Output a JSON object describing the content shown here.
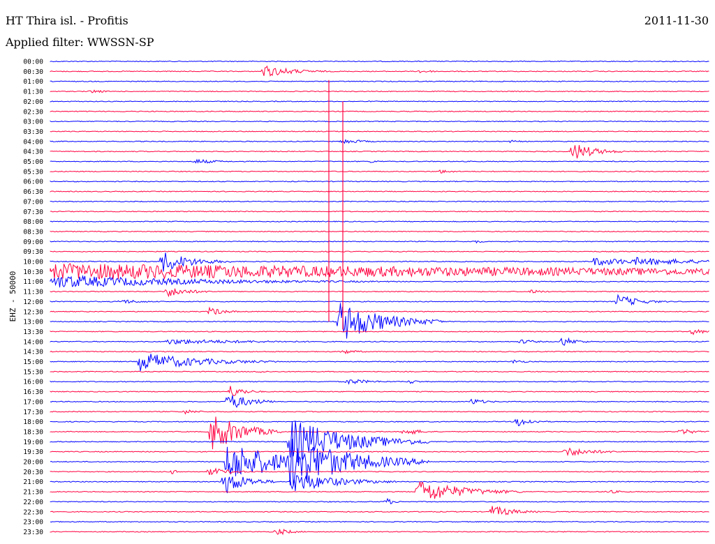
{
  "header": {
    "station": "HT Thira isl. - Profitis",
    "date": "2011-11-30",
    "filter": "Applied filter: WWSSN-SP"
  },
  "channel_label": "EHZ - 50000",
  "colors": {
    "even": "#0000ff",
    "odd": "#ff0040"
  },
  "time_labels": [
    "00:00",
    "00:30",
    "01:00",
    "01:30",
    "02:00",
    "02:30",
    "03:00",
    "03:30",
    "04:00",
    "04:30",
    "05:00",
    "05:30",
    "06:00",
    "06:30",
    "07:00",
    "07:30",
    "08:00",
    "08:30",
    "09:00",
    "09:30",
    "10:00",
    "10:30",
    "11:00",
    "11:30",
    "12:00",
    "12:30",
    "13:00",
    "13:30",
    "14:00",
    "14:30",
    "15:00",
    "15:30",
    "16:00",
    "16:30",
    "17:00",
    "17:30",
    "18:00",
    "18:30",
    "19:00",
    "19:30",
    "20:00",
    "20:30",
    "21:00",
    "21:30",
    "22:00",
    "22:30",
    "23:00",
    "23:30"
  ]
}
